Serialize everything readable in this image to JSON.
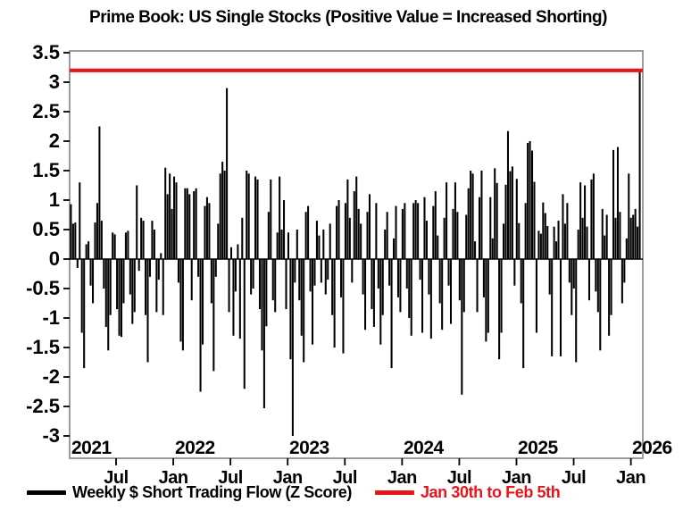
{
  "title": "Prime Book: US Single Stocks (Positive Value = Increased Shorting)",
  "legend": {
    "series_label": "Weekly $ Short Trading Flow (Z Score)",
    "series_color": "#000000",
    "reference_label": "Jan 30th to Feb 5th",
    "reference_color": "#e8141c"
  },
  "y_axis": {
    "tick_labels": [
      "3.5",
      "3",
      "2.5",
      "2",
      "1.5",
      "1",
      "0.5",
      "0",
      "-0.5",
      "-1",
      "-1.5",
      "-2",
      "-2.5",
      "-3"
    ]
  },
  "x_axis": {
    "tick_labels": [
      "Jul",
      "Jan",
      "Jul",
      "Jan",
      "Jul",
      "Jan",
      "Jul",
      "Jan",
      "Jul",
      "Jan"
    ],
    "year_labels": [
      "2021",
      "2022",
      "2023",
      "2024",
      "2025",
      "2026"
    ]
  },
  "chart_data": {
    "type": "bar",
    "title": "Prime Book: US Single Stocks (Positive Value = Increased Shorting)",
    "series_name": "Weekly $ Short Trading Flow (Z Score)",
    "x_start": "2021-02",
    "x_end": "2026-02",
    "frequency": "weekly",
    "xlabel": "",
    "ylabel": "",
    "ylim": [
      -3.4,
      3.55
    ],
    "yticks": [
      3.5,
      3,
      2.5,
      2,
      1.5,
      1,
      0.5,
      0,
      -0.5,
      -1,
      -1.5,
      -2,
      -2.5,
      -3
    ],
    "grid": false,
    "bar_color": "#000000",
    "reference_line": {
      "value": 3.2,
      "color": "#e8141c",
      "label": "Jan 30th to Feb 5th"
    },
    "values": [
      0.93,
      0.6,
      0.62,
      -0.15,
      1.3,
      -1.25,
      -1.85,
      0.25,
      0.3,
      -0.45,
      -0.75,
      0.62,
      0.95,
      2.25,
      0.65,
      -0.5,
      -1.15,
      -1.55,
      -0.95,
      0.45,
      0.42,
      -0.85,
      -1.3,
      -1.32,
      -0.75,
      0.45,
      0.48,
      -0.6,
      -1.1,
      -0.9,
      1.25,
      -0.2,
      0.7,
      0.65,
      -0.95,
      -1.75,
      -0.3,
      0.65,
      0.5,
      -0.9,
      -0.35,
      0.1,
      -0.95,
      1.55,
      1.1,
      1.45,
      0.85,
      1.4,
      1.3,
      -0.4,
      -1.4,
      -1.55,
      1.2,
      1.2,
      1.1,
      -0.7,
      1.15,
      1.2,
      -0.3,
      -2.25,
      -1.45,
      0.9,
      1.05,
      0.95,
      -0.75,
      -1.9,
      -0.3,
      0.6,
      1.45,
      1.65,
      1.5,
      2.9,
      -0.9,
      0.2,
      -1.3,
      -0.55,
      0.25,
      -1.35,
      0.7,
      -2.2,
      1.5,
      1.45,
      -0.6,
      -0.5,
      1.4,
      1.35,
      -0.85,
      -1.55,
      -2.53,
      -1.14,
      0.8,
      1.35,
      -0.7,
      -0.9,
      0.45,
      1.4,
      0.5,
      1.0,
      -0.85,
      0.45,
      -1.7,
      -3.0,
      -0.4,
      0.5,
      -0.7,
      -1.3,
      -1.75,
      0.8,
      0.9,
      -0.55,
      -1.45,
      -0.45,
      0.65,
      0.4,
      -0.4,
      0.5,
      -0.6,
      -0.35,
      0.6,
      -0.95,
      -1.5,
      0.9,
      1.0,
      -0.65,
      -1.6,
      0.95,
      1.35,
      0.7,
      -0.4,
      1.15,
      1.4,
      0.85,
      0.6,
      -0.6,
      -1.2,
      0.8,
      1.1,
      -0.85,
      -1.15,
      0.95,
      -0.5,
      -1.45,
      -0.95,
      0.5,
      0.8,
      -0.45,
      -1.85,
      0.35,
      0.9,
      -0.65,
      -0.9,
      0.85,
      0.95,
      -0.5,
      -1.0,
      -1.3,
      0.95,
      1.0,
      0.95,
      -0.35,
      -1.25,
      1.05,
      0.65,
      -0.6,
      -1.35,
      0.9,
      1.15,
      0.4,
      -0.75,
      -1.2,
      0.7,
      1.3,
      -0.45,
      -1.1,
      0.85,
      1.3,
      0.8,
      -0.7,
      -2.3,
      -0.9,
      0.75,
      1.2,
      1.5,
      1.45,
      0.3,
      -0.9,
      1.05,
      1.5,
      -0.65,
      -1.4,
      -1.25,
      1.05,
      0.35,
      1.54,
      1.29,
      -1.7,
      -1.25,
      0.6,
      1.26,
      2.17,
      1.49,
      1.57,
      -0.45,
      1.36,
      0.61,
      -0.75,
      -1.85,
      0.95,
      1.97,
      2.0,
      1.84,
      1.31,
      -1.25,
      0.48,
      0.43,
      0.96,
      0.78,
      0.56,
      -0.6,
      -1.65,
      0.55,
      0.3,
      0.65,
      -1.65,
      1.1,
      0.6,
      0.95,
      -0.4,
      -0.95,
      -0.5,
      -1.75,
      0.5,
      1.3,
      0.7,
      1.25,
      0.55,
      -0.7,
      1.35,
      1.45,
      -0.55,
      -0.9,
      -1.55,
      0.85,
      0.4,
      0.75,
      -1.3,
      -0.95,
      1.85,
      0.7,
      1.9,
      0.8,
      -0.75,
      -0.4,
      0.35,
      1.45,
      0.7,
      0.75,
      0.85,
      0.55,
      3.2
    ]
  }
}
